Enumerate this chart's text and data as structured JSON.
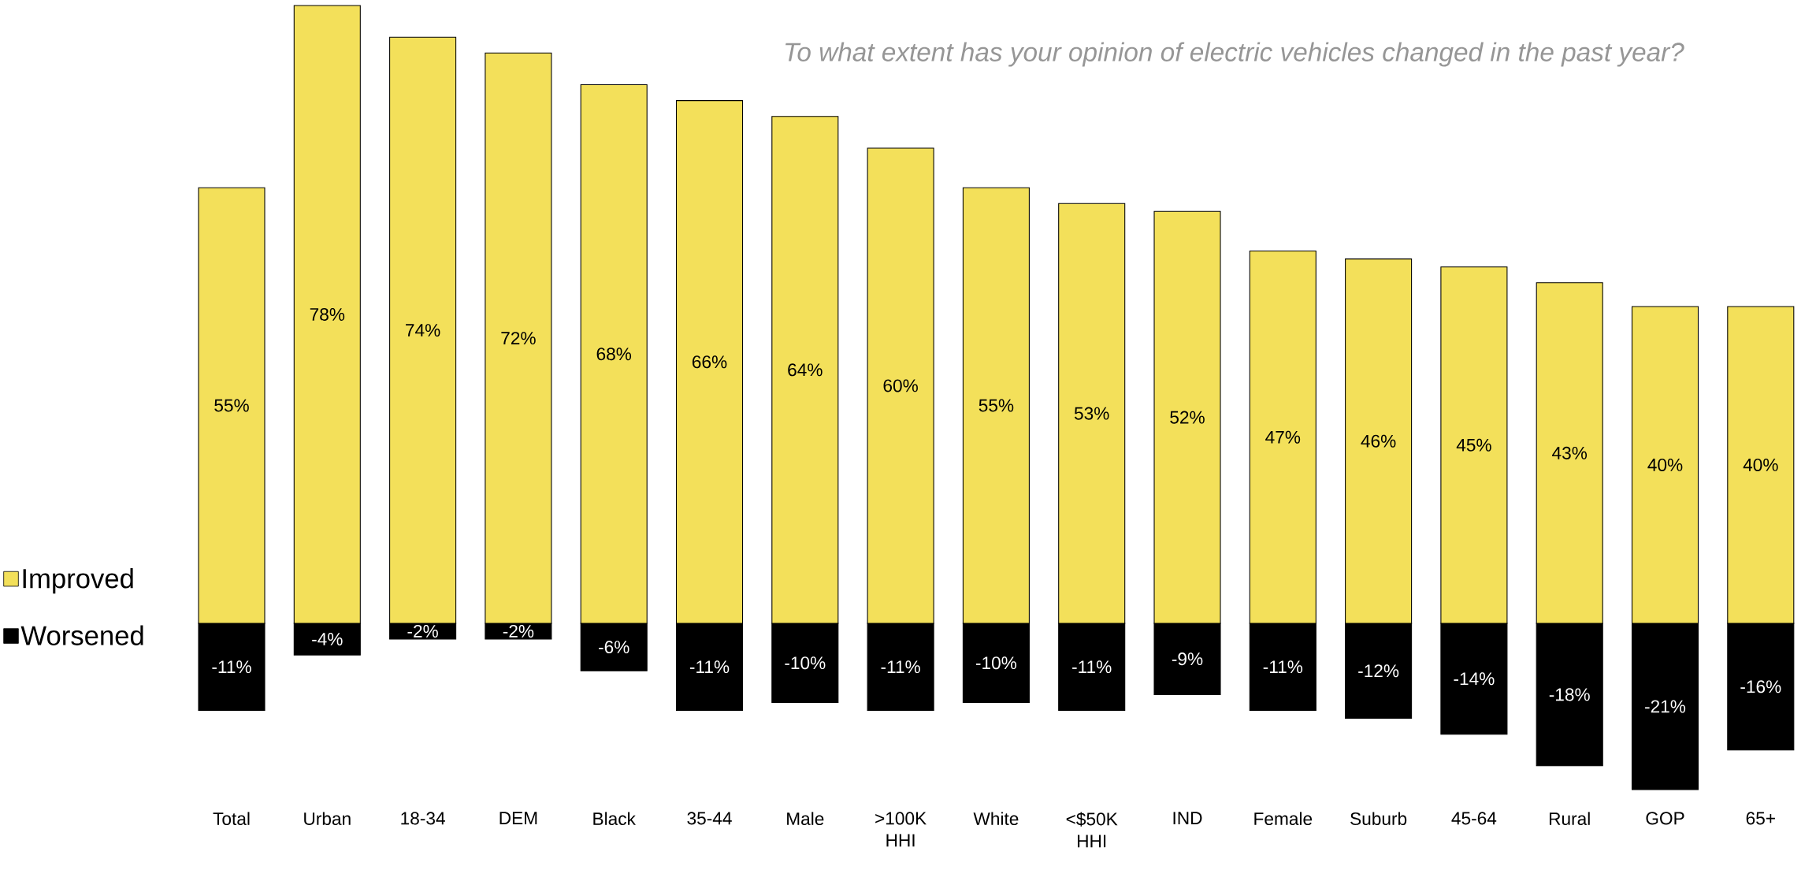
{
  "chart_data": {
    "type": "bar",
    "title": "To what extent has your opinion of electric vehicles changed in the past year?",
    "categories": [
      "Total",
      "Urban",
      "18-34",
      "DEM",
      "Black",
      "35-44",
      "Male",
      ">100K HHI",
      "White",
      "<$50K HHI",
      "IND",
      "Female",
      "Suburb",
      "45-64",
      "Rural",
      "GOP",
      "65+"
    ],
    "series": [
      {
        "name": "Improved",
        "color": "#f3e05a",
        "values": [
          55,
          78,
          74,
          72,
          68,
          66,
          64,
          60,
          55,
          53,
          52,
          47,
          46,
          45,
          43,
          40,
          40
        ],
        "value_labels": [
          "55%",
          "78%",
          "74%",
          "72%",
          "68%",
          "66%",
          "64%",
          "60%",
          "55%",
          "53%",
          "52%",
          "47%",
          "46%",
          "45%",
          "43%",
          "40%",
          "40%"
        ]
      },
      {
        "name": "Worsened",
        "color": "#000000",
        "values": [
          -11,
          -4,
          -2,
          -2,
          -6,
          -11,
          -10,
          -11,
          -10,
          -11,
          -9,
          -11,
          -12,
          -14,
          -18,
          -21,
          -16
        ],
        "value_labels": [
          "-11%",
          "-4%",
          "-2%",
          "-2%",
          "-6%",
          "-11%",
          "-10%",
          "-11%",
          "-10%",
          "-11%",
          "-9%",
          "-11%",
          "-12%",
          "-14%",
          "-18%",
          "-21%",
          "-16%"
        ]
      }
    ],
    "stacked": true,
    "legend": "left"
  }
}
